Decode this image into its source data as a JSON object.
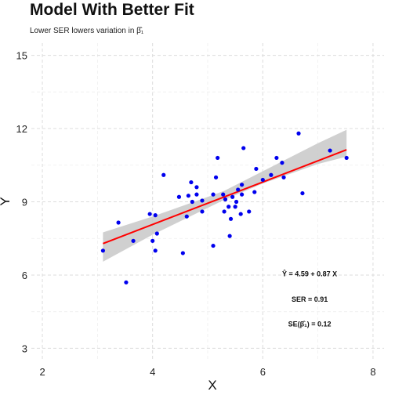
{
  "chart_data": {
    "type": "scatter",
    "title": "Model With Better Fit",
    "subtitle": "Lower SER lowers variation in β̂₁",
    "xlabel": "X",
    "ylabel": "Y",
    "xlim": [
      1.8,
      8.2
    ],
    "ylim": [
      2.5,
      15.5
    ],
    "x_ticks": [
      2,
      4,
      6,
      8
    ],
    "y_ticks": [
      3,
      6,
      9,
      12,
      15
    ],
    "grid": true,
    "point_color": "#0000ee",
    "line_color": "#ff0000",
    "band_color": "#c8c8c8",
    "points": [
      [
        3.1,
        7.0
      ],
      [
        3.38,
        8.15
      ],
      [
        3.52,
        5.7
      ],
      [
        3.65,
        7.4
      ],
      [
        3.95,
        8.5
      ],
      [
        4.0,
        7.4
      ],
      [
        4.05,
        7.0
      ],
      [
        4.05,
        8.45
      ],
      [
        4.08,
        7.7
      ],
      [
        4.2,
        10.1
      ],
      [
        4.48,
        9.2
      ],
      [
        4.55,
        6.9
      ],
      [
        4.62,
        8.4
      ],
      [
        4.65,
        9.25
      ],
      [
        4.7,
        9.8
      ],
      [
        4.72,
        9.0
      ],
      [
        4.8,
        9.3
      ],
      [
        4.8,
        9.6
      ],
      [
        4.9,
        8.6
      ],
      [
        4.9,
        9.05
      ],
      [
        5.1,
        7.2
      ],
      [
        5.1,
        9.3
      ],
      [
        5.15,
        10.0
      ],
      [
        5.18,
        10.8
      ],
      [
        5.28,
        9.3
      ],
      [
        5.3,
        8.6
      ],
      [
        5.32,
        9.1
      ],
      [
        5.38,
        8.8
      ],
      [
        5.4,
        7.6
      ],
      [
        5.42,
        8.3
      ],
      [
        5.45,
        9.2
      ],
      [
        5.5,
        8.8
      ],
      [
        5.52,
        9.0
      ],
      [
        5.55,
        9.5
      ],
      [
        5.6,
        8.5
      ],
      [
        5.62,
        9.7
      ],
      [
        5.62,
        9.3
      ],
      [
        5.65,
        11.2
      ],
      [
        5.75,
        8.6
      ],
      [
        5.85,
        9.4
      ],
      [
        5.88,
        10.35
      ],
      [
        6.0,
        9.9
      ],
      [
        6.15,
        10.1
      ],
      [
        6.25,
        10.8
      ],
      [
        6.35,
        10.6
      ],
      [
        6.38,
        10.0
      ],
      [
        6.65,
        11.8
      ],
      [
        6.72,
        9.35
      ],
      [
        7.22,
        11.1
      ],
      [
        7.52,
        10.8
      ]
    ],
    "fit": {
      "intercept": 4.59,
      "slope": 0.87,
      "x_range": [
        3.1,
        7.52
      ]
    },
    "band": {
      "x": [
        3.1,
        4.0,
        5.0,
        5.3,
        6.0,
        7.0,
        7.52
      ],
      "lower": [
        6.55,
        7.65,
        8.75,
        9.08,
        9.75,
        10.55,
        10.85
      ],
      "upper": [
        7.75,
        8.4,
        9.2,
        9.45,
        10.25,
        11.4,
        11.95
      ]
    },
    "annotations": [
      {
        "text": "Ŷ = 4.59 + 0.87 X",
        "x": 6.85,
        "y": 5.95
      },
      {
        "text": "SER = 0.91",
        "x": 6.85,
        "y": 4.9
      },
      {
        "text": "SE(β̂₁) = 0.12",
        "x": 6.85,
        "y": 3.9
      }
    ]
  }
}
